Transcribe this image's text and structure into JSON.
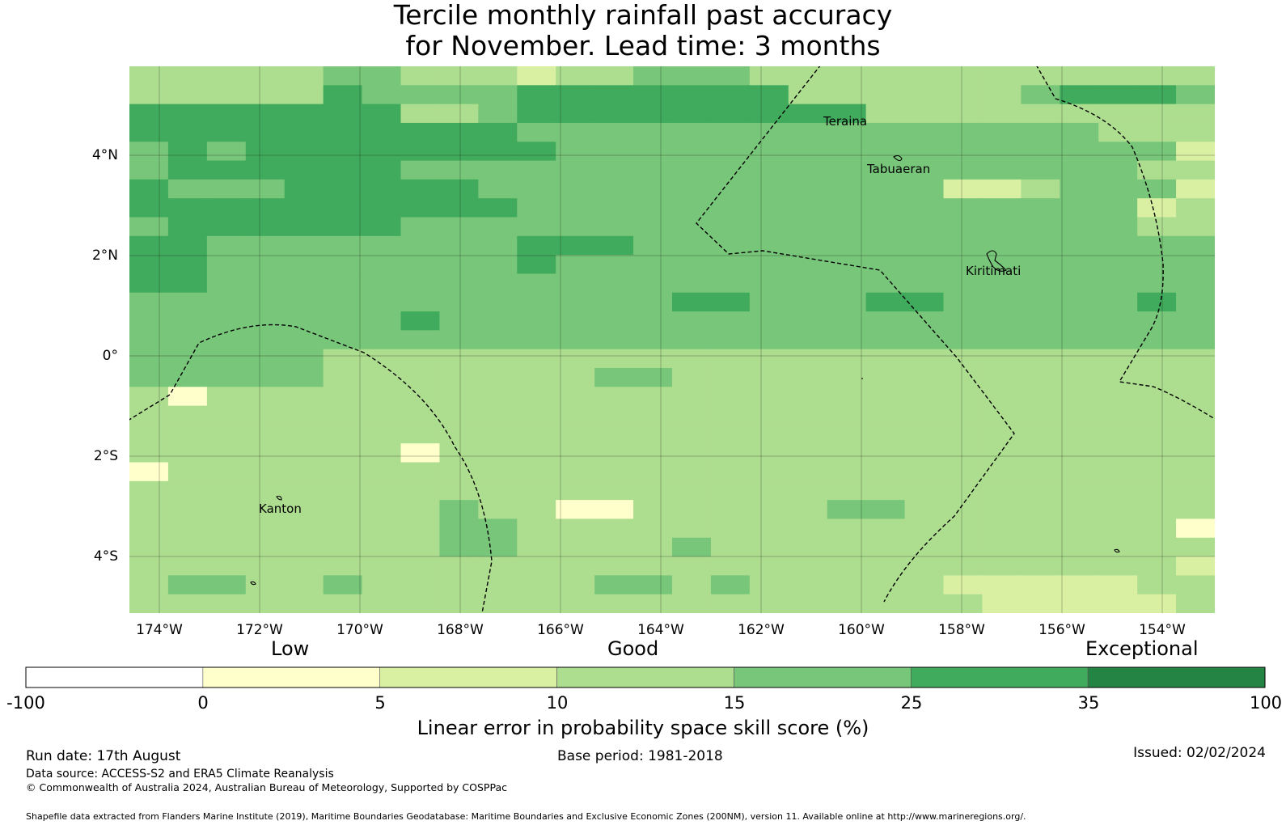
{
  "title": {
    "line1": "Tercile monthly rainfall past accuracy",
    "line2": "for November. Lead time: 3 months"
  },
  "map": {
    "lat_labels": [
      "4°N",
      "2°N",
      "0°",
      "2°S",
      "4°S"
    ],
    "lon_labels": [
      "174°W",
      "172°W",
      "170°W",
      "168°W",
      "166°W",
      "164°W",
      "162°W",
      "160°W",
      "158°W",
      "156°W",
      "154°W"
    ],
    "places": [
      "Teraina",
      "Tabuaeran",
      "Kiritimati",
      "Kanton"
    ],
    "border_color": "#000000",
    "skill_grid": [
      "3333344333233444333333333333",
      "3333354444555555533333345554",
      "5555555334555555555333333333",
      "5555555555444444444444444333",
      "4545555555544444444444444442",
      "4555555444444444444444444433",
      "5444555554444444444442234442",
      "5555555555444444444444444423",
      "4555555444444444444444444433",
      "5544444444555444444444444444",
      "5544444444544444444444444444",
      "5544444444444444444444444444",
      "4444444444444455444554444454",
      "4444444544444444444444444444",
      "4444444444444444444444444444",
      "4444433333333333333333333333",
      "4444433333334433333333333333",
      "3133333333333333333333333333",
      "3333333333333333333333333333",
      "3333333333333333333333333333",
      "3333333133333333333333333333",
      "1333333333333333333333333333",
      "3333333333333333333333333333",
      "3333333343311333334433333333",
      "3333333344333333333333333331",
      "3333333344333343333333333333",
      "3333333333333333333333333332",
      "3443343333334434333332222233",
      "3333333333333333333333222223"
    ]
  },
  "colorbar": {
    "title": "Linear error in probability space skill score (%)",
    "category_labels": [
      "Low",
      "Good",
      "Exceptional"
    ],
    "tick_labels": [
      "-100",
      "0",
      "5",
      "10",
      "15",
      "25",
      "35",
      "100"
    ],
    "colors": [
      "#ffffff",
      "#ffffcc",
      "#d9f0a3",
      "#addd8e",
      "#78c679",
      "#41ab5d",
      "#238443"
    ]
  },
  "footer": {
    "run_date": "Run date: 17th August",
    "base_period": "Base period: 1981-2018",
    "issued": "Issued: 02/02/2024",
    "data_source": "Data source: ACCESS-S2 and ERA5 Climate Reanalysis",
    "copyright": "© Commonwealth of Australia 2024, Australian Bureau of Meteorology, Supported by COSPPac",
    "shapefile_note": "Shapefile data extracted from Flanders Marine Institute (2019), Maritime Boundaries Geodatabase: Maritime Boundaries and Exclusive Economic Zones (200NM), version 11. Available online at http://www.marineregions.org/."
  }
}
